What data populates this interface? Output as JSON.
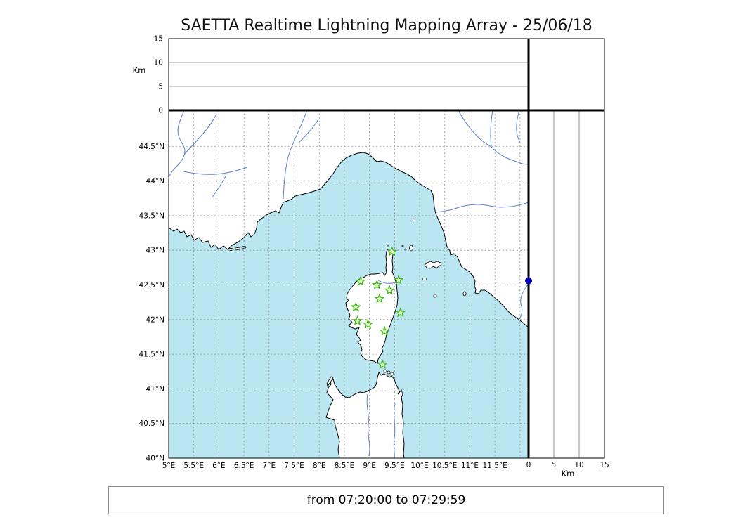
{
  "title": "SAETTA Realtime Lightning Mapping Array - 25/06/18",
  "footer": {
    "text": "from 07:20:00 to 07:29:59"
  },
  "axes_labels": {
    "alt_unit_left": "Km",
    "alt_unit_right": "Km"
  },
  "chart_data": {
    "type": "map",
    "title": "SAETTA Realtime Lightning Mapping Array - 25/06/18",
    "time_window": {
      "date": "25/06/18",
      "from": "07:20:00",
      "to": "07:29:59"
    },
    "panels": {
      "top_altitude_vs_longitude": {
        "ylabel": "Km",
        "ylim": [
          0,
          15
        ],
        "tick_values": [
          0,
          5,
          10,
          15
        ],
        "data": "empty"
      },
      "main_map": {
        "region": "Corsica / NW Mediterranean (S France, Ligurian & Tyrrhenian coasts, Corsica, N Sardinia, Tuscan islands)",
        "lon_range_deg_e": [
          5,
          12.17
        ],
        "lat_range_deg_n": [
          40,
          45.02
        ],
        "grid_step_deg": 0.5,
        "grid": true
      },
      "right_altitude_vs_latitude": {
        "xlabel": "Km",
        "xlim": [
          0,
          15
        ],
        "tick_values": [
          0,
          5,
          10,
          15
        ],
        "data": "single point"
      }
    },
    "lon_ticks": [
      {
        "v": 5,
        "label": "5°E"
      },
      {
        "v": 5.5,
        "label": "5.5°E"
      },
      {
        "v": 6,
        "label": "6°E"
      },
      {
        "v": 6.5,
        "label": "6.5°E"
      },
      {
        "v": 7,
        "label": "7°E"
      },
      {
        "v": 7.5,
        "label": "7.5°E"
      },
      {
        "v": 8,
        "label": "8°E"
      },
      {
        "v": 8.5,
        "label": "8.5°E"
      },
      {
        "v": 9,
        "label": "9°E"
      },
      {
        "v": 9.5,
        "label": "9.5°E"
      },
      {
        "v": 10,
        "label": "10°E"
      },
      {
        "v": 10.5,
        "label": "10.5°E"
      },
      {
        "v": 11,
        "label": "11°E"
      },
      {
        "v": 11.5,
        "label": "11.5°E"
      }
    ],
    "lat_ticks": [
      {
        "v": 44.5,
        "label": "44.5°N"
      },
      {
        "v": 44,
        "label": "44°N"
      },
      {
        "v": 43.5,
        "label": "43.5°N"
      },
      {
        "v": 43,
        "label": "43°N"
      },
      {
        "v": 42.5,
        "label": "42.5°N"
      },
      {
        "v": 42,
        "label": "42°N"
      },
      {
        "v": 41.5,
        "label": "41.5°N"
      },
      {
        "v": 41,
        "label": "41°N"
      },
      {
        "v": 40.5,
        "label": "40.5°N"
      },
      {
        "v": 40,
        "label": "40°N"
      }
    ],
    "km_ticks": [
      {
        "v": 0,
        "label": "0"
      },
      {
        "v": 5,
        "label": "5"
      },
      {
        "v": 10,
        "label": "10"
      },
      {
        "v": 15,
        "label": "15"
      }
    ],
    "stations": [
      {
        "lon": 9.45,
        "lat": 42.98
      },
      {
        "lon": 8.82,
        "lat": 42.55
      },
      {
        "lon": 9.15,
        "lat": 42.5
      },
      {
        "lon": 9.58,
        "lat": 42.57
      },
      {
        "lon": 9.4,
        "lat": 42.42
      },
      {
        "lon": 9.2,
        "lat": 42.3
      },
      {
        "lon": 8.73,
        "lat": 42.18
      },
      {
        "lon": 9.62,
        "lat": 42.1
      },
      {
        "lon": 8.76,
        "lat": 41.98
      },
      {
        "lon": 8.97,
        "lat": 41.93
      },
      {
        "lon": 9.3,
        "lat": 41.83
      },
      {
        "lon": 9.26,
        "lat": 41.35
      }
    ],
    "points": [
      {
        "panel": "right_altitude_vs_latitude",
        "alt_km": 0,
        "lat": 42.56,
        "color": "#0000bb"
      }
    ],
    "colors": {
      "sea": "#b9e6f0",
      "land": "#ffffff",
      "coastline": "#000000",
      "river": "#5b7fd0",
      "grid": "#909090",
      "frame": "#000000",
      "station_edge": "#3cb414",
      "station_fill": "#eef9d8"
    }
  }
}
